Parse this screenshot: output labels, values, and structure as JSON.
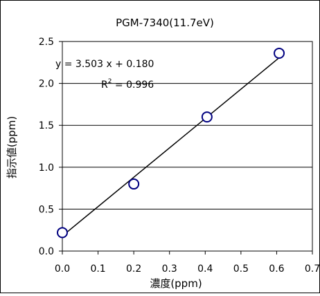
{
  "chart_data": {
    "type": "scatter",
    "title": "PGM-7340(11.7eV)",
    "xlabel": "濃度(ppm)",
    "ylabel": "指示値(ppm)",
    "xlim": [
      0,
      0.7
    ],
    "ylim": [
      0,
      2.5
    ],
    "x_ticks": [
      "0.0",
      "0.1",
      "0.2",
      "0.3",
      "0.4",
      "0.5",
      "0.6",
      "0.7"
    ],
    "y_ticks": [
      "0.0",
      "0.5",
      "1.0",
      "1.5",
      "2.0",
      "2.5"
    ],
    "grid": "horizontal",
    "legend": "none",
    "series": [
      {
        "points": [
          {
            "x": 0.0,
            "y": 0.22
          },
          {
            "x": 0.2,
            "y": 0.8
          },
          {
            "x": 0.405,
            "y": 1.6
          },
          {
            "x": 0.607,
            "y": 2.36
          }
        ],
        "marker": "open-circle",
        "color": "#000080"
      }
    ],
    "trendline": {
      "slope": 3.503,
      "intercept": 0.18,
      "x_range": [
        0.0,
        0.607
      ],
      "color": "#000000"
    },
    "annotations": {
      "equation": "y = 3.503 x + 0.180",
      "r_squared_prefix": "R",
      "r_squared_exponent": "2",
      "r_squared_value": " = 0.996"
    }
  }
}
